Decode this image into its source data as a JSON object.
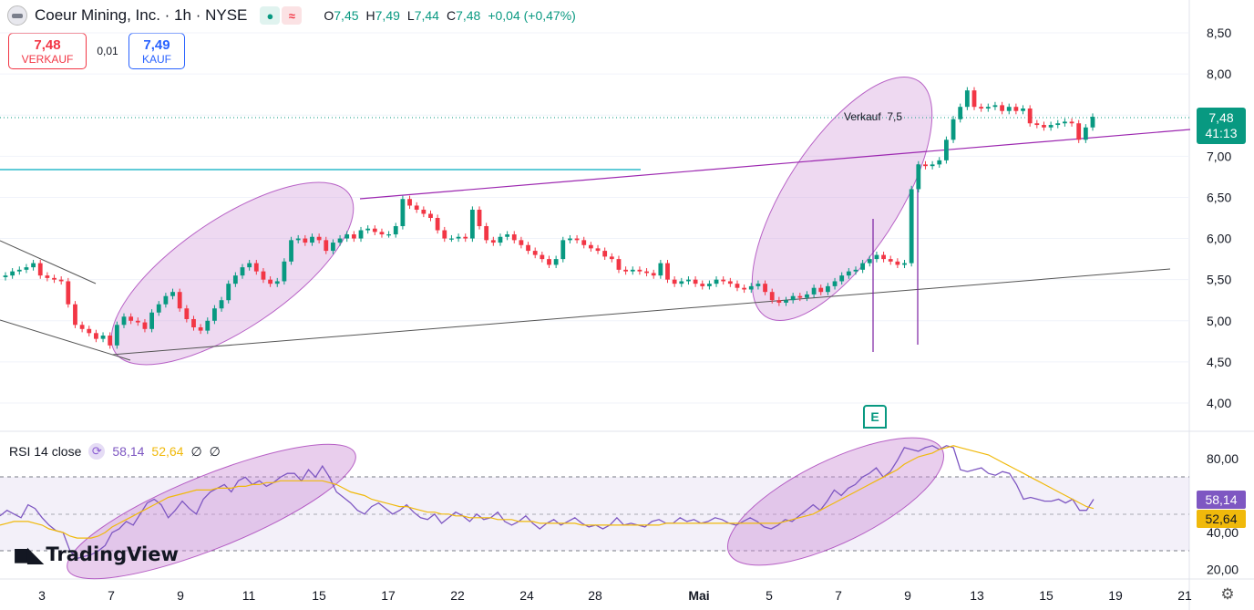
{
  "header": {
    "symbol_title": "Coeur Mining, Inc. · 1h · NYSE",
    "market_icon": "market-open-icon",
    "wave_icon": "wave-icon",
    "ohlc": [
      {
        "label": "O",
        "value": "7,45"
      },
      {
        "label": "H",
        "value": "7,49"
      },
      {
        "label": "L",
        "value": "7,44"
      },
      {
        "label": "C",
        "value": "7,48"
      }
    ],
    "change": "+0,04 (+0,47%)"
  },
  "trade": {
    "sell_price": "7,48",
    "sell_label": "VERKAUF",
    "spread": "0,01",
    "buy_price": "7,49",
    "buy_label": "KAUF"
  },
  "rsi_legend": {
    "name": "RSI 14 close",
    "rsi_value": "58,14",
    "ma_value": "52,64",
    "empty1": "∅",
    "empty2": "∅"
  },
  "logo": "TradingView",
  "colors": {
    "up": "#089981",
    "down": "#f23645",
    "rsi": "#7e57c2",
    "rsi_ma": "#f0b90b",
    "ellipse_fill": "#ce93d8",
    "trendline": "#9c27b0",
    "hline": "#00acc1"
  },
  "chart_data": [
    {
      "type": "candlestick",
      "title": "Coeur Mining, Inc. · 1h · NYSE",
      "ylim": [
        3.6,
        8.6
      ],
      "y_ticks": [
        "8,50",
        "8,00",
        "7,50",
        "7,00",
        "6,50",
        "6,00",
        "5,50",
        "5,00",
        "4,50",
        "4,00"
      ],
      "x_ticks": [
        "3",
        "7",
        "9",
        "11",
        "15",
        "17",
        "22",
        "24",
        "28",
        "Mai",
        "5",
        "7",
        "9",
        "13",
        "15",
        "19",
        "21"
      ],
      "last_price": "7,48",
      "countdown": "41:13",
      "annotation": "Verkauf  7,5",
      "earnings_marker": "E",
      "close_approx": [
        5.55,
        5.6,
        5.62,
        5.65,
        5.7,
        5.55,
        5.52,
        5.5,
        5.48,
        5.2,
        4.95,
        4.9,
        4.85,
        4.78,
        4.82,
        4.7,
        4.95,
        5.05,
        5.0,
        4.98,
        4.9,
        5.1,
        5.2,
        5.3,
        5.35,
        5.15,
        5.02,
        4.92,
        4.88,
        5.0,
        5.15,
        5.25,
        5.45,
        5.55,
        5.65,
        5.7,
        5.6,
        5.5,
        5.45,
        5.48,
        5.72,
        5.98,
        6.0,
        5.95,
        6.02,
        5.98,
        5.85,
        5.95,
        6.0,
        6.05,
        6.0,
        6.1,
        6.12,
        6.08,
        6.05,
        6.05,
        6.15,
        6.48,
        6.4,
        6.35,
        6.3,
        6.25,
        6.1,
        6.0,
        6.0,
        6.02,
        6.0,
        6.35,
        6.15,
        5.98,
        5.95,
        6.02,
        6.05,
        5.98,
        5.92,
        5.85,
        5.8,
        5.75,
        5.68,
        5.75,
        5.98,
        6.0,
        5.98,
        5.92,
        5.88,
        5.85,
        5.78,
        5.75,
        5.62,
        5.6,
        5.62,
        5.6,
        5.58,
        5.55,
        5.7,
        5.5,
        5.45,
        5.48,
        5.5,
        5.45,
        5.42,
        5.45,
        5.5,
        5.48,
        5.45,
        5.4,
        5.38,
        5.42,
        5.45,
        5.35,
        5.25,
        5.22,
        5.25,
        5.3,
        5.28,
        5.32,
        5.4,
        5.35,
        5.42,
        5.48,
        5.55,
        5.6,
        5.62,
        5.7,
        5.75,
        5.8,
        5.75,
        5.72,
        5.68,
        5.7,
        6.6,
        6.9,
        6.88,
        6.9,
        6.95,
        7.2,
        7.45,
        7.6,
        7.8,
        7.6,
        7.58,
        7.6,
        7.62,
        7.55,
        7.6,
        7.55,
        7.58,
        7.4,
        7.38,
        7.35,
        7.38,
        7.4,
        7.42,
        7.4,
        7.2,
        7.35,
        7.48
      ]
    },
    {
      "type": "line",
      "title": "RSI 14 close",
      "ylim": [
        15,
        90
      ],
      "y_ticks": [
        "80,00",
        "40,00",
        "20,00"
      ],
      "bands": [
        30,
        50,
        70
      ],
      "series": [
        {
          "name": "RSI 14 close",
          "last": "58,14",
          "values": [
            49,
            52,
            50,
            48,
            55,
            53,
            48,
            44,
            41,
            40,
            30,
            26,
            27,
            28,
            30,
            33,
            40,
            42,
            46,
            44,
            50,
            56,
            58,
            55,
            48,
            52,
            57,
            53,
            50,
            58,
            62,
            64,
            66,
            62,
            68,
            70,
            66,
            68,
            65,
            67,
            70,
            72,
            72,
            68,
            74,
            70,
            76,
            70,
            62,
            59,
            56,
            52,
            50,
            54,
            56,
            53,
            50,
            52,
            55,
            51,
            48,
            47,
            50,
            45,
            48,
            51,
            49,
            46,
            50,
            47,
            48,
            51,
            46,
            44,
            46,
            49,
            45,
            42,
            45,
            47,
            44,
            46,
            48,
            45,
            43,
            44,
            42,
            44,
            48,
            44,
            45,
            44,
            43,
            46,
            47,
            45,
            45,
            48,
            46,
            47,
            45,
            46,
            48,
            47,
            45,
            44,
            46,
            48,
            46,
            43,
            42,
            44,
            47,
            46,
            49,
            52,
            55,
            52,
            57,
            63,
            60,
            64,
            66,
            70,
            72,
            75,
            70,
            73,
            79,
            86,
            85,
            84,
            86,
            87,
            85,
            87,
            86,
            74,
            73,
            74,
            75,
            72,
            71,
            73,
            72,
            66,
            58,
            59,
            58,
            57,
            57,
            58,
            56,
            58,
            52,
            52,
            58
          ]
        },
        {
          "name": "MA",
          "last": "52,64",
          "values": [
            44,
            45,
            46,
            46,
            46,
            45,
            44,
            42,
            41,
            40,
            38,
            37,
            37,
            37,
            38,
            40,
            43,
            45,
            47,
            49,
            51,
            53,
            55,
            57,
            59,
            60,
            61,
            62,
            63,
            63,
            63,
            64,
            64,
            64,
            65,
            65,
            66,
            66,
            67,
            67,
            68,
            68,
            68,
            68,
            68,
            68,
            68,
            67,
            66,
            64,
            62,
            61,
            60,
            58,
            57,
            56,
            55,
            54,
            54,
            53,
            52,
            51,
            51,
            50,
            50,
            49,
            49,
            48,
            48,
            48,
            48,
            47,
            47,
            47,
            46,
            46,
            46,
            45,
            45,
            45,
            45,
            45,
            45,
            44,
            44,
            44,
            44,
            44,
            44,
            44,
            44,
            44,
            44,
            44,
            44,
            45,
            45,
            45,
            45,
            45,
            45,
            45,
            45,
            45,
            45,
            45,
            45,
            45,
            45,
            45,
            45,
            45,
            46,
            47,
            48,
            49,
            50,
            52,
            54,
            56,
            58,
            60,
            62,
            64,
            66,
            68,
            70,
            72,
            74,
            77,
            79,
            81,
            82,
            83,
            85,
            86,
            87,
            86,
            85,
            84,
            83,
            82,
            80,
            78,
            76,
            74,
            72,
            70,
            68,
            66,
            64,
            62,
            60,
            58,
            56,
            54,
            53
          ]
        }
      ]
    }
  ]
}
